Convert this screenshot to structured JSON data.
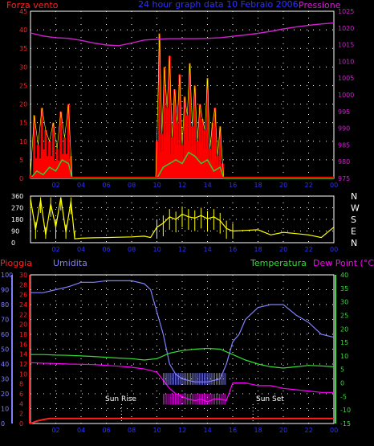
{
  "colors": {
    "wind": "#ff0000",
    "gust_fill": "#ff0000",
    "gust_line": "#ffff00",
    "avg_wind": "#33cc33",
    "pressure": "#d020d0",
    "direction": "#ffff00",
    "humidity": "#8080ff",
    "temperature": "#33dd33",
    "dewpoint": "#ff00ff",
    "rain": "#ff2020",
    "grid": "#ffffff",
    "axis": "#ffffff",
    "left_wind_axis": "#ff2020",
    "right_pressure_axis": "#d020d0",
    "rain_axis": "#ff2020",
    "hum_axis": "#8080ff",
    "temp_axis": "#33dd33"
  },
  "header": {
    "wind_label": "Forza vento",
    "title": "24 hour graph data 10 Febraio 2006",
    "pressure_label": "Pressione"
  },
  "bottom_header": {
    "rain_label": "Pioggia",
    "humidity_label": "Umidita",
    "temperature_label": "Temperatura",
    "dewpoint_label": "Dew Point (°C)"
  },
  "markers": {
    "sunrise": "Sun Rise",
    "sunset": "Sun Set"
  },
  "direction_letters": [
    "N",
    "W",
    "S",
    "E",
    "N"
  ],
  "chart_data": [
    {
      "type": "line",
      "title": "24 hour graph data 10 Febraio 2006",
      "xlabel": "",
      "ylabel": "Forza vento",
      "y2label": "Pressione",
      "x_ticks": [
        "02",
        "04",
        "06",
        "08",
        "10",
        "12",
        "14",
        "16",
        "18",
        "20",
        "22",
        "00"
      ],
      "ylim": [
        0,
        45
      ],
      "y_ticks": [
        0,
        5,
        10,
        15,
        20,
        25,
        30,
        35,
        40,
        45
      ],
      "y2lim": [
        975,
        1025
      ],
      "y2_ticks": [
        975,
        980,
        985,
        990,
        995,
        1000,
        1005,
        1010,
        1015,
        1020,
        1025
      ],
      "grid": true,
      "series": [
        {
          "name": "Pressione",
          "axis": "right",
          "x": [
            0,
            1,
            2,
            3,
            4,
            5,
            6,
            7,
            8,
            9,
            10,
            11,
            12,
            13,
            14,
            15,
            16,
            17,
            18,
            19,
            20,
            21,
            22,
            23,
            24
          ],
          "values": [
            1018.5,
            1017.6,
            1017.1,
            1016.9,
            1016.3,
            1015.5,
            1014.9,
            1014.7,
            1015.5,
            1016.4,
            1016.6,
            1016.8,
            1016.8,
            1016.8,
            1016.9,
            1017.1,
            1017.5,
            1017.9,
            1018.4,
            1019.0,
            1019.7,
            1020.3,
            1020.8,
            1021.2,
            1021.5
          ]
        },
        {
          "name": "Forza vento",
          "axis": "left",
          "x": [
            0,
            0.3,
            0.6,
            0.9,
            1.2,
            1.5,
            1.8,
            2.1,
            2.4,
            2.7,
            3.0,
            3.2,
            3.3,
            4,
            6,
            8,
            9.9,
            10.0,
            10.2,
            10.4,
            10.6,
            10.8,
            11.0,
            11.2,
            11.4,
            11.6,
            11.8,
            12.0,
            12.2,
            12.4,
            12.6,
            12.8,
            13.0,
            13.2,
            13.4,
            13.6,
            13.8,
            14.0,
            14.2,
            14.4,
            14.6,
            14.8,
            15.0,
            15.2,
            15.3,
            16,
            24
          ],
          "values": [
            1,
            17,
            9,
            19,
            13,
            10,
            15,
            8,
            18,
            11,
            20,
            6,
            0,
            0,
            0,
            0,
            0,
            10,
            39,
            12,
            30,
            19,
            33,
            11,
            24,
            15,
            28,
            9,
            22,
            17,
            31,
            14,
            25,
            10,
            20,
            16,
            13,
            27,
            8,
            15,
            19,
            6,
            14,
            4,
            0,
            0,
            0
          ]
        },
        {
          "name": "Media vento",
          "axis": "left",
          "x": [
            0,
            0.5,
            1.0,
            1.5,
            2.0,
            2.5,
            3.0,
            3.3,
            10.0,
            10.5,
            11.0,
            11.5,
            12.0,
            12.5,
            13.0,
            13.5,
            14.0,
            14.5,
            15.0,
            15.3,
            24
          ],
          "values": [
            0,
            2,
            1,
            3,
            2,
            5,
            4,
            0,
            0,
            3,
            4,
            5,
            4,
            7,
            6,
            4,
            5,
            2,
            3,
            0,
            0
          ]
        }
      ]
    },
    {
      "type": "scatter",
      "title": "",
      "ylabel": "",
      "ylim": [
        0,
        360
      ],
      "y_ticks": [
        0,
        90,
        180,
        270,
        360
      ],
      "x_ticks": [
        "02",
        "04",
        "06",
        "08",
        "10",
        "12",
        "14",
        "16",
        "18",
        "20",
        "22",
        "00"
      ],
      "series": [
        {
          "name": "",
          "x": [
            0,
            0.4,
            0.8,
            1.2,
            1.6,
            2.0,
            2.4,
            2.8,
            3.2,
            3.5,
            4,
            5,
            6,
            7,
            8,
            9,
            9.5,
            10,
            10.5,
            11,
            11.5,
            12,
            12.5,
            13,
            13.5,
            14,
            14.5,
            15,
            15.5,
            16,
            17,
            18,
            19,
            20,
            21,
            22,
            23,
            23.5,
            24
          ],
          "values": [
            340,
            100,
            330,
            60,
            300,
            120,
            350,
            80,
            320,
            30,
            35,
            38,
            40,
            42,
            45,
            50,
            40,
            120,
            150,
            200,
            180,
            220,
            200,
            190,
            210,
            185,
            200,
            170,
            110,
            90,
            95,
            100,
            60,
            80,
            70,
            60,
            40,
            80,
            120
          ]
        }
      ]
    },
    {
      "type": "line",
      "title": "",
      "ylabel": "Umidita",
      "y2label": "Temperatura / Dew Point (°C)",
      "x_ticks": [
        "02",
        "04",
        "06",
        "08",
        "10",
        "12",
        "14",
        "16",
        "18",
        "20",
        "22",
        "00"
      ],
      "ylim": [
        0,
        100
      ],
      "y_ticks": [
        0,
        10,
        20,
        30,
        40,
        50,
        60,
        70,
        80,
        90,
        100
      ],
      "rain_ylim": [
        0,
        30
      ],
      "rain_ticks": [
        0,
        2,
        4,
        6,
        8,
        10,
        12,
        14,
        16,
        18,
        20,
        22,
        24,
        26,
        28,
        30
      ],
      "y2lim": [
        -15,
        40
      ],
      "y2_ticks": [
        -15,
        -10,
        -5,
        0,
        5,
        10,
        15,
        20,
        25,
        30,
        35,
        40
      ],
      "grid": true,
      "sunrise_hour": 7.2,
      "sunset_hour": 17.6,
      "series": [
        {
          "name": "Umidita",
          "axis": "left",
          "x": [
            0,
            1,
            2,
            3,
            4,
            5,
            6,
            7,
            8,
            9,
            9.5,
            10,
            10.5,
            11,
            11.5,
            12,
            12.5,
            13,
            13.5,
            14,
            14.5,
            15,
            15.5,
            16,
            16.5,
            17,
            18,
            19,
            20,
            21,
            22,
            23,
            24
          ],
          "values": [
            88,
            88,
            90,
            92,
            95,
            95,
            96,
            96,
            96,
            94,
            90,
            75,
            60,
            40,
            33,
            30,
            29,
            28,
            28,
            28,
            29,
            30,
            40,
            55,
            60,
            70,
            78,
            80,
            80,
            73,
            68,
            60,
            58
          ]
        },
        {
          "name": "Temperatura",
          "axis": "right",
          "x": [
            0,
            1,
            2,
            3,
            4,
            5,
            6,
            7,
            8,
            9,
            10,
            11,
            12,
            13,
            14,
            15,
            16,
            17,
            18,
            19,
            20,
            21,
            22,
            23,
            24
          ],
          "values": [
            10.5,
            10.5,
            10.3,
            10.2,
            10.0,
            9.8,
            9.5,
            9.2,
            9.0,
            8.5,
            9.0,
            11.0,
            12.0,
            12.5,
            12.8,
            12.5,
            10.5,
            8.5,
            7.0,
            6.0,
            5.5,
            6.0,
            6.5,
            6.3,
            6.0
          ]
        },
        {
          "name": "Dew Point",
          "axis": "right",
          "x": [
            0,
            1,
            2,
            3,
            4,
            5,
            6,
            7,
            8,
            9,
            10,
            10.5,
            11,
            11.5,
            12,
            12.5,
            13,
            13.5,
            14,
            14.5,
            15,
            15.5,
            16,
            17,
            18,
            19,
            20,
            21,
            22,
            23,
            24
          ],
          "values": [
            7.5,
            7.3,
            7.2,
            7.0,
            6.9,
            6.8,
            6.5,
            6.2,
            5.8,
            5.2,
            4.0,
            1,
            -2,
            -4,
            -5,
            -6,
            -6.5,
            -6,
            -7,
            -6,
            -6,
            -6.5,
            0,
            0,
            -1,
            -1,
            -2,
            -2.5,
            -3,
            -3.5,
            -3.5
          ]
        },
        {
          "name": "Pioggia",
          "axis": "rain",
          "x": [
            0,
            0.5,
            1,
            1.5,
            2,
            24
          ],
          "values": [
            0,
            0.5,
            0.8,
            1.0,
            1.0,
            1.0
          ]
        }
      ]
    }
  ]
}
